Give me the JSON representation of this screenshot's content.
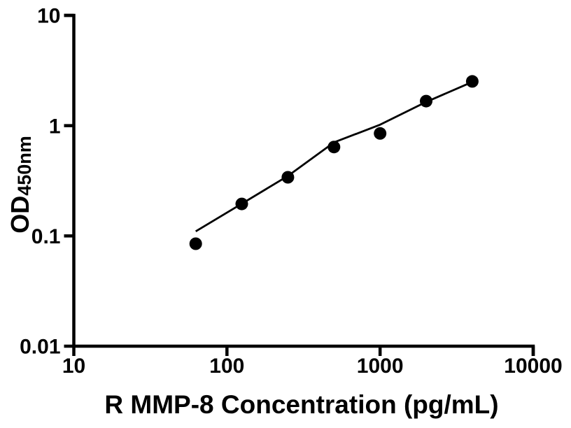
{
  "figure": {
    "background_color": "#ffffff",
    "ink_color": "#000000"
  },
  "chart_data": {
    "type": "scatter",
    "title": "",
    "xlabel": "R MMP-8 Concentration (pg/mL)",
    "ylabel_main": "OD",
    "ylabel_sub": "450nm",
    "x_scale": "log10",
    "y_scale": "log10",
    "xlim": [
      10,
      10000
    ],
    "ylim": [
      0.01,
      10
    ],
    "grid": false,
    "legend": false,
    "x_ticks": [
      {
        "value": 10,
        "label": "10"
      },
      {
        "value": 100,
        "label": "100"
      },
      {
        "value": 1000,
        "label": "1000"
      },
      {
        "value": 10000,
        "label": "10000"
      }
    ],
    "y_ticks": [
      {
        "value": 10,
        "label": "10"
      },
      {
        "value": 1,
        "label": "1"
      },
      {
        "value": 0.1,
        "label": "0.1"
      },
      {
        "value": 0.01,
        "label": "0.01"
      }
    ],
    "series": [
      {
        "name": "fit-line",
        "type": "line",
        "color": "#000000",
        "x": [
          62.5,
          125,
          250,
          500,
          1000,
          2000,
          4000
        ],
        "y": [
          0.11,
          0.196,
          0.35,
          0.705,
          1.02,
          1.64,
          2.49
        ]
      },
      {
        "name": "standard-points",
        "type": "scatter",
        "marker": "filled-circle",
        "color": "#000000",
        "x": [
          62.5,
          125,
          250,
          500,
          1000,
          2000,
          4000
        ],
        "y": [
          0.085,
          0.195,
          0.34,
          0.64,
          0.85,
          1.67,
          2.52
        ]
      }
    ],
    "style": {
      "ink_color": "#000000",
      "background_color": "#ffffff",
      "axis_line_width": 4.5,
      "tick_length": 14,
      "curve_line_width": 2.8,
      "marker_radius": 9
    }
  }
}
